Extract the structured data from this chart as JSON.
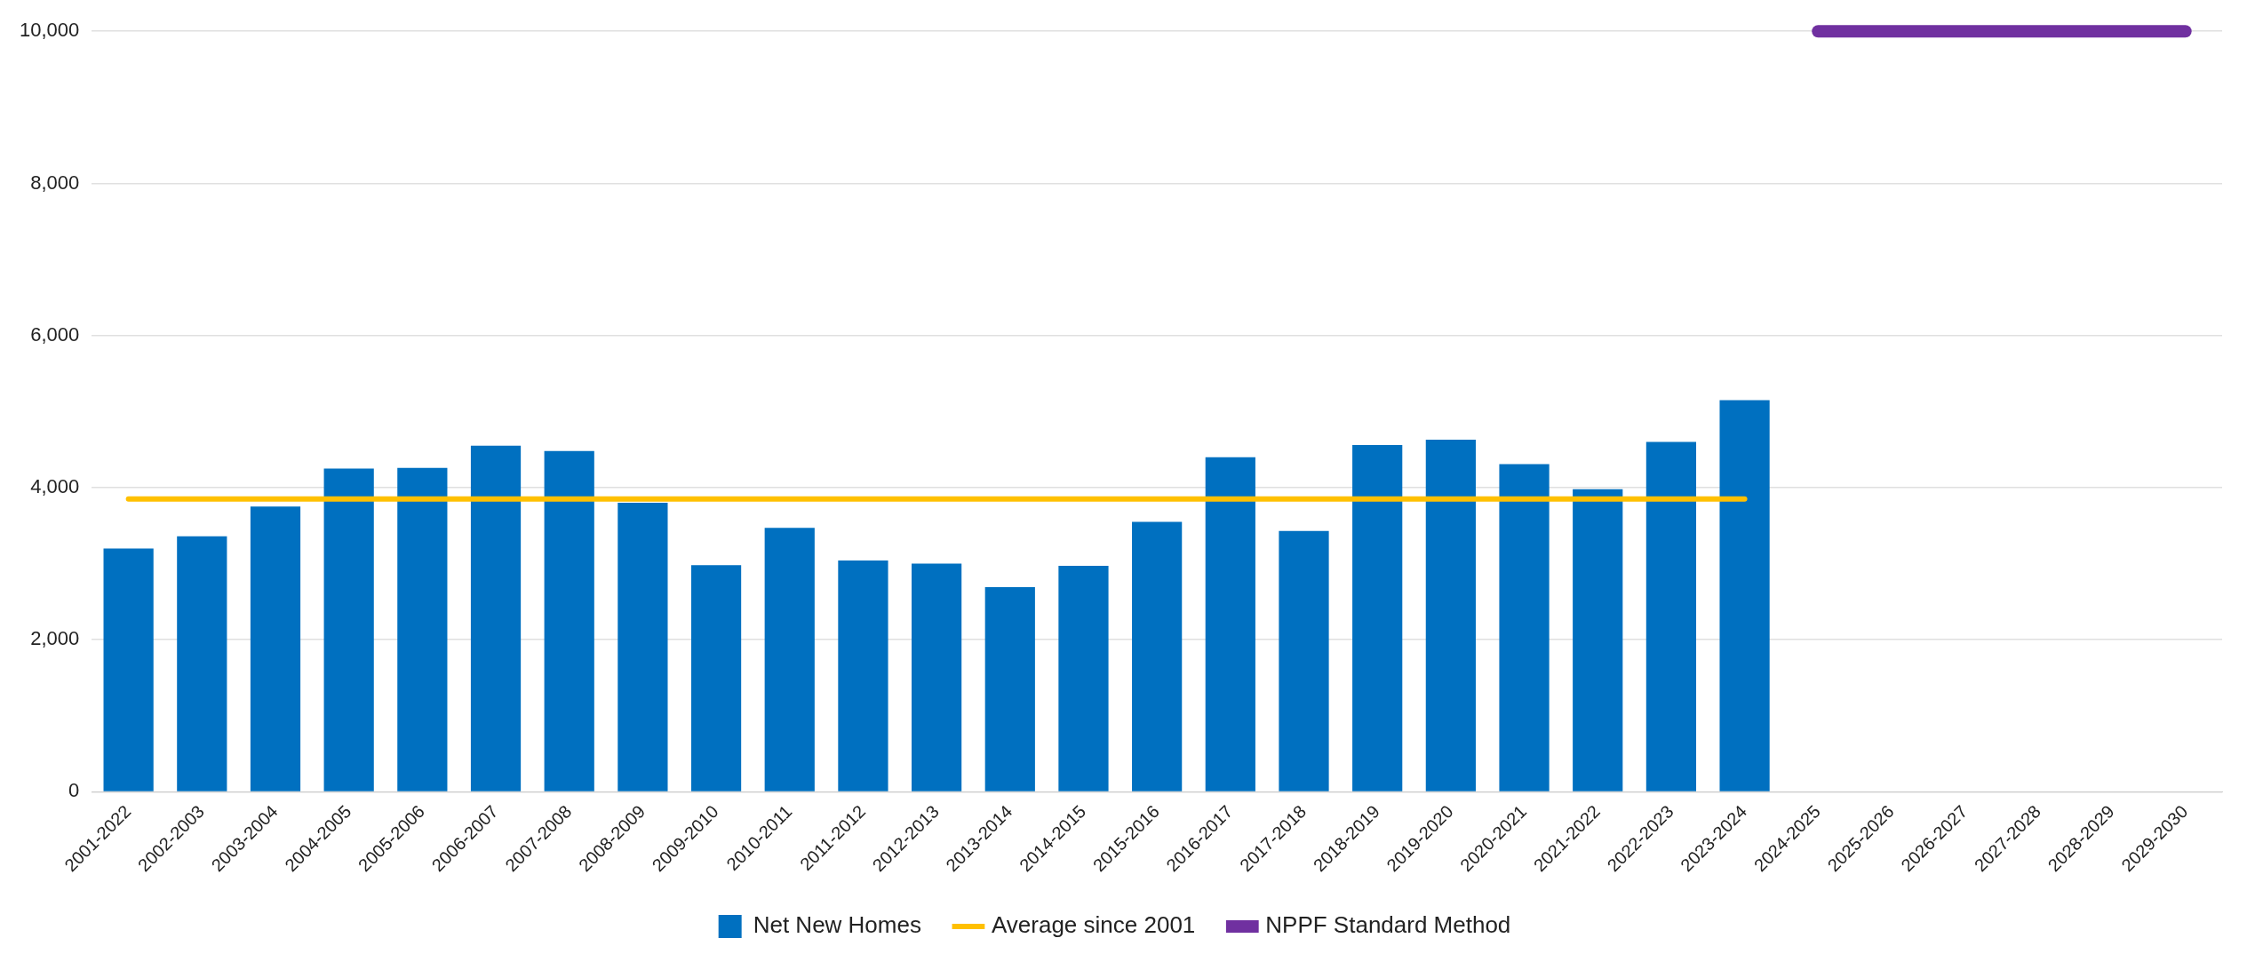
{
  "chart_data": {
    "type": "bar",
    "categories": [
      "2001-2022",
      "2002-2003",
      "2003-2004",
      "2004-2005",
      "2005-2006",
      "2006-2007",
      "2007-2008",
      "2008-2009",
      "2009-2010",
      "2010-2011",
      "2011-2012",
      "2012-2013",
      "2013-2014",
      "2014-2015",
      "2015-2016",
      "2016-2017",
      "2017-2018",
      "2018-2019",
      "2019-2020",
      "2020-2021",
      "2021-2022",
      "2022-2023",
      "2023-2024",
      "2024-2025",
      "2025-2026",
      "2026-2027",
      "2027-2028",
      "2028-2029",
      "2029-2030"
    ],
    "series": [
      {
        "name": "Net New Homes",
        "color": "#0070c0",
        "values": [
          3200,
          3360,
          3750,
          4250,
          4260,
          4550,
          4480,
          3800,
          2980,
          3470,
          3040,
          3000,
          2690,
          2970,
          3550,
          4400,
          3430,
          4560,
          4630,
          4310,
          3980,
          4600,
          5150,
          null,
          null,
          null,
          null,
          null,
          null
        ]
      },
      {
        "type": "line",
        "name": "Average since 2001",
        "color": "#ffc000",
        "values": [
          3850,
          3850,
          3850,
          3850,
          3850,
          3850,
          3850,
          3850,
          3850,
          3850,
          3850,
          3850,
          3850,
          3850,
          3850,
          3850,
          3850,
          3850,
          3850,
          3850,
          3850,
          3850,
          3850,
          null,
          null,
          null,
          null,
          null,
          null
        ]
      },
      {
        "type": "line",
        "name": "NPPF Standard Method",
        "color": "#7030a0",
        "values": [
          null,
          null,
          null,
          null,
          null,
          null,
          null,
          null,
          null,
          null,
          null,
          null,
          null,
          null,
          null,
          null,
          null,
          null,
          null,
          null,
          null,
          null,
          null,
          10000,
          10000,
          10000,
          10000,
          10000,
          10000
        ]
      }
    ],
    "ylim": [
      0,
      10000
    ],
    "yticks": [
      0,
      {
        "value": 2000,
        "label": "2,000"
      },
      {
        "value": 4000,
        "label": "4,000"
      },
      {
        "value": 6000,
        "label": "6,000"
      },
      {
        "value": 8000,
        "label": "8,000"
      },
      {
        "value": 10000,
        "label": "10,000"
      }
    ],
    "grid": "y",
    "legend": "bottom"
  }
}
